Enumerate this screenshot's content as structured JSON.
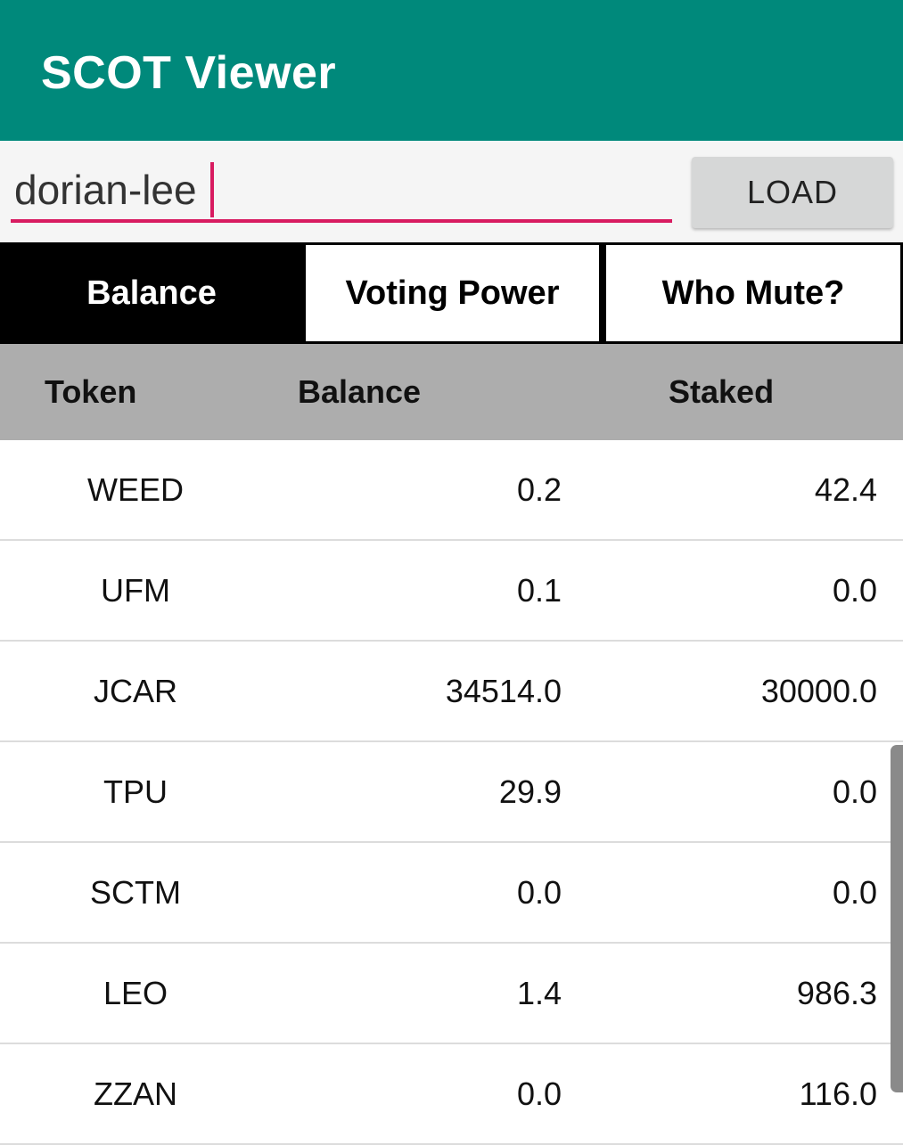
{
  "app": {
    "title": "SCOT Viewer"
  },
  "search": {
    "value": "dorian-lee",
    "load_label": "LOAD"
  },
  "tabs": [
    {
      "label": "Balance",
      "selected": true
    },
    {
      "label": "Voting Power",
      "selected": false
    },
    {
      "label": "Who Mute?",
      "selected": false
    }
  ],
  "table": {
    "headers": {
      "token": "Token",
      "balance": "Balance",
      "staked": "Staked"
    },
    "rows": [
      {
        "token": "WEED",
        "balance": "0.2",
        "staked": "42.4"
      },
      {
        "token": "UFM",
        "balance": "0.1",
        "staked": "0.0"
      },
      {
        "token": "JCAR",
        "balance": "34514.0",
        "staked": "30000.0"
      },
      {
        "token": "TPU",
        "balance": "29.9",
        "staked": "0.0"
      },
      {
        "token": "SCTM",
        "balance": "0.0",
        "staked": "0.0"
      },
      {
        "token": "LEO",
        "balance": "1.4",
        "staked": "986.3"
      },
      {
        "token": "ZZAN",
        "balance": "0.0",
        "staked": "116.0"
      }
    ]
  },
  "colors": {
    "app_bar": "#00897b",
    "input_underline": "#d81b60",
    "header_row": "#adadad",
    "selected_tab": "#000000"
  }
}
